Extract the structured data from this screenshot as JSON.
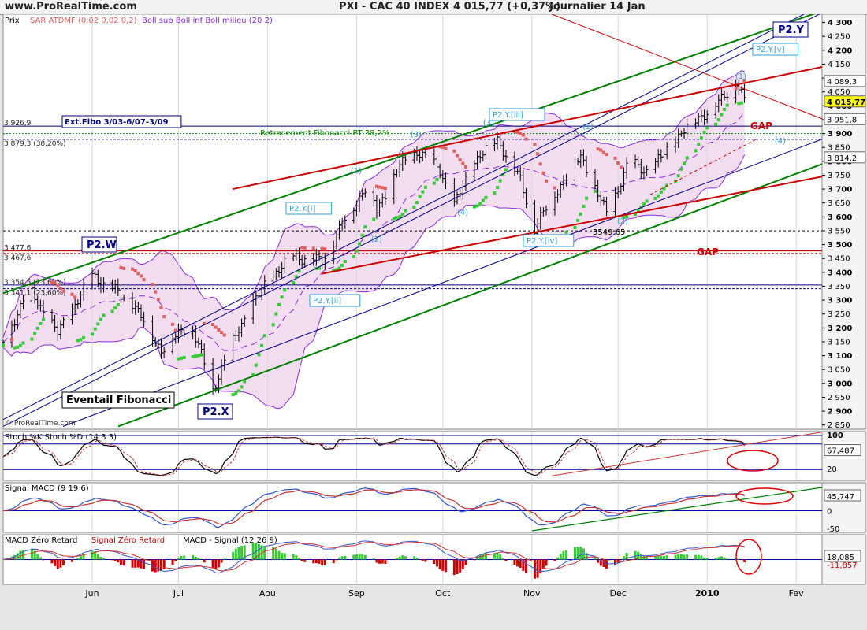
{
  "header": {
    "site": "www.ProRealTime.com",
    "instrument": "PXI - CAC 40 INDEX",
    "change": "4 015,77  (+0,37%)",
    "period": "Journalier  14 Jan"
  },
  "colors": {
    "background": "#ffffff",
    "band_fill": "#f3ddf0",
    "band_line": "#8a2be2",
    "sar_up": "#33cc33",
    "sar_down": "#e06060",
    "channel_green": "#008000",
    "channel_blue": "#00008b",
    "red_line": "#cc0000",
    "label_cyan": "#2f9fd8",
    "label_navy": "#000080"
  },
  "chart_data": [
    {
      "type": "candlestick-ohlc",
      "panel": "price",
      "legend": [
        "Prix",
        "SAR ATDMF (0,02 0,02 0,2)",
        "Boll sup Boll inf Boll milieu (20 2)"
      ],
      "x_months": [
        "Jun",
        "Jul",
        "Aou",
        "Sep",
        "Oct",
        "Nov",
        "Dec",
        "2010",
        "Fev"
      ],
      "y_ticks": [
        "4 300",
        "4 250",
        "4 200",
        "4 150",
        "4 100",
        "4 050",
        "4 000",
        "3 950",
        "3 900",
        "3 850",
        "3 800",
        "3 750",
        "3 700",
        "3 650",
        "3 600",
        "3 550",
        "3 500",
        "3 450",
        "3 400",
        "3 350",
        "3 300",
        "3 250",
        "3 200",
        "3 150",
        "3 100",
        "3 050",
        "3 000",
        "2 950",
        "2 900",
        "2 850"
      ],
      "ylim": [
        2835,
        4330
      ],
      "price_markers": [
        "4 089,3",
        "4 015,77",
        "3 951,8",
        "3 814,2"
      ],
      "anchors": [
        [
          "2009-05-01",
          3150
        ],
        [
          "2009-05-10",
          3340
        ],
        [
          "2009-05-20",
          3180
        ],
        [
          "2009-06-01",
          3390
        ],
        [
          "2009-06-15",
          3290
        ],
        [
          "2009-06-25",
          3120
        ],
        [
          "2009-07-05",
          3220
        ],
        [
          "2009-07-13",
          2980
        ],
        [
          "2009-07-22",
          3200
        ],
        [
          "2009-08-01",
          3370
        ],
        [
          "2009-08-10",
          3460
        ],
        [
          "2009-08-20",
          3440
        ],
        [
          "2009-08-28",
          3590
        ],
        [
          "2009-09-05",
          3720
        ],
        [
          "2009-09-08",
          3620
        ],
        [
          "2009-09-15",
          3770
        ],
        [
          "2009-09-22",
          3840
        ],
        [
          "2009-09-30",
          3770
        ],
        [
          "2009-10-05",
          3640
        ],
        [
          "2009-10-12",
          3800
        ],
        [
          "2009-10-20",
          3880
        ],
        [
          "2009-10-28",
          3730
        ],
        [
          "2009-11-02",
          3560
        ],
        [
          "2009-11-10",
          3700
        ],
        [
          "2009-11-18",
          3820
        ],
        [
          "2009-11-27",
          3610
        ],
        [
          "2009-12-05",
          3800
        ],
        [
          "2009-12-12",
          3760
        ],
        [
          "2009-12-20",
          3870
        ],
        [
          "2009-12-28",
          3950
        ],
        [
          "2010-01-05",
          4010
        ],
        [
          "2010-01-11",
          4089
        ],
        [
          "2010-01-14",
          4016
        ]
      ],
      "levels": [
        {
          "label": "3 926,9",
          "value": 3926.9
        },
        {
          "label": "3 879,3 (38,20%)",
          "value": 3879.3
        },
        {
          "label": "3 477,6",
          "value": 3477.6
        },
        {
          "label": "3 467,6",
          "value": 3467.6
        },
        {
          "label": "3 354,5 (23,60%)",
          "value": 3354.5
        },
        {
          "label": "3 341,1 (23,60%)",
          "value": 3341.1
        }
      ],
      "annotations": [
        {
          "text": "P2.Y",
          "kind": "wave-box"
        },
        {
          "text": "P2.Y.[v]",
          "kind": "wave"
        },
        {
          "text": "P2.W",
          "kind": "wave-box"
        },
        {
          "text": "P2.X",
          "kind": "wave-box"
        },
        {
          "text": "P2.Y.[i]",
          "kind": "wave"
        },
        {
          "text": "P2.Y.[ii]",
          "kind": "wave"
        },
        {
          "text": "P2.Y.[iii]",
          "kind": "wave"
        },
        {
          "text": "P2.Y.[iv]",
          "kind": "wave"
        },
        {
          "text": "(1)",
          "kind": "count"
        },
        {
          "text": "(2)",
          "kind": "count"
        },
        {
          "text": "(3)",
          "kind": "count"
        },
        {
          "text": "(4)",
          "kind": "count"
        },
        {
          "text": "(5)",
          "kind": "count"
        },
        {
          "text": "Ext.Fibo 3/03-6/07-3/09",
          "kind": "note"
        },
        {
          "text": "Retracement Fibonacci PT 38,2%",
          "kind": "note"
        },
        {
          "text": "3549,65",
          "kind": "note"
        },
        {
          "text": "GAP",
          "kind": "gap"
        },
        {
          "text": "Eventail Fibonacci",
          "kind": "note"
        },
        {
          "text": "© ProRealTime.com",
          "kind": "credit"
        }
      ]
    },
    {
      "type": "line",
      "panel": "stochastic",
      "legend": [
        "Stoch %K",
        "Stoch %D (14 3 3)"
      ],
      "series": [
        {
          "name": "Stoch %K"
        },
        {
          "name": "Stoch %D"
        }
      ],
      "levels": [
        100,
        80,
        20
      ],
      "markers": [
        "100",
        "67,487",
        "20"
      ]
    },
    {
      "type": "line",
      "panel": "macd",
      "legend": [
        "Signal",
        "MACD (9 19 6)"
      ],
      "series": [
        {
          "name": "Signal"
        },
        {
          "name": "MACD"
        }
      ],
      "markers": [
        "45,747",
        "0",
        "-50"
      ]
    },
    {
      "type": "bar",
      "panel": "macd-zero-lag",
      "legend": [
        "MACD Zéro Retard",
        "Signal Zéro Retard",
        "MACD - Signal (12 26 9)"
      ],
      "series": [
        {
          "name": "MACD Zéro Retard"
        },
        {
          "name": "Signal Zéro Retard"
        },
        {
          "name": "MACD - Signal"
        }
      ],
      "markers": [
        "18,085",
        "-11,857"
      ]
    }
  ]
}
